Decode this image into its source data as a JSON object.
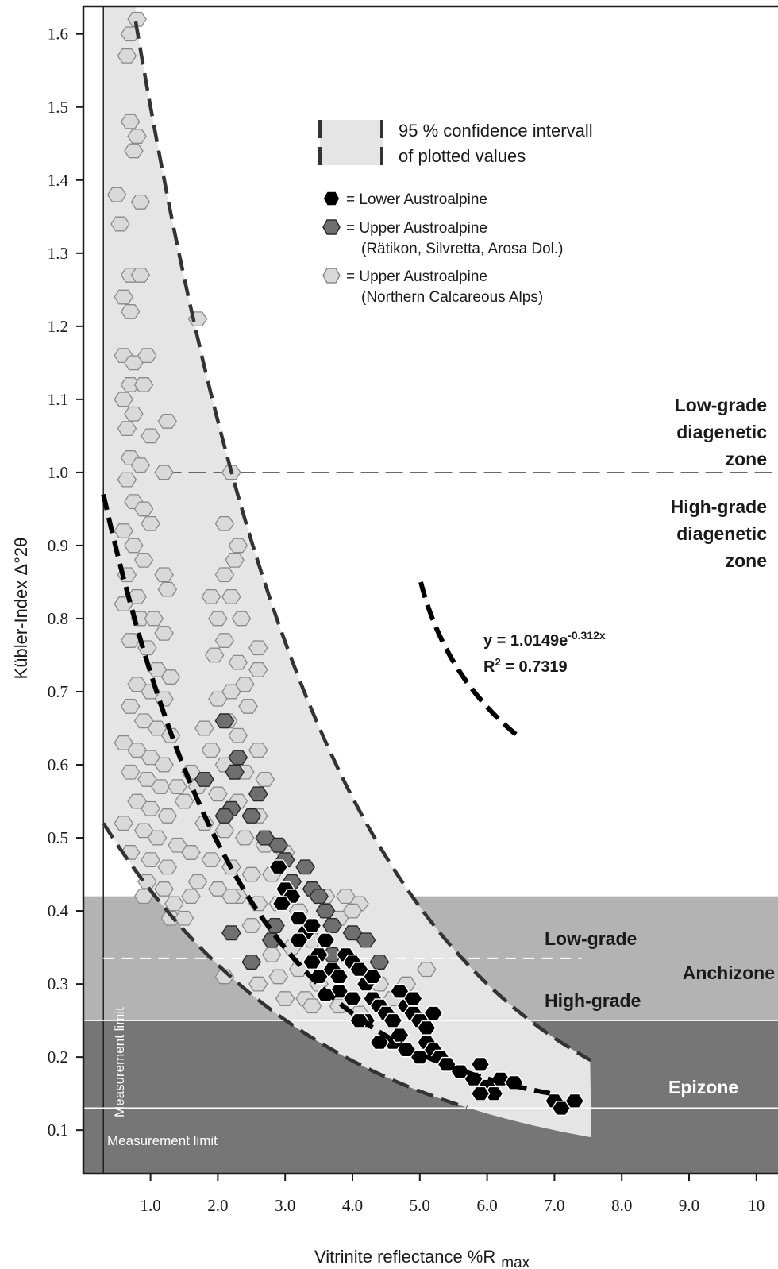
{
  "chart_data": {
    "type": "scatter",
    "xlabel": "Vitrinite reflectance %R",
    "xlabel_sub": "max",
    "ylabel": "Kübler-Index Δ°2θ",
    "xlim": [
      0,
      10.2
    ],
    "ylim": [
      0.02,
      1.64
    ],
    "x_ticks": [
      "1.0",
      "2.0",
      "3.0",
      "4.0",
      "5.0",
      "6.0",
      "7.0",
      "8.0",
      "9.0",
      "10"
    ],
    "y_ticks": [
      "0.1",
      "0.2",
      "0.3",
      "0.4",
      "0.5",
      "0.6",
      "0.7",
      "0.8",
      "0.9",
      "1.0",
      "1.1",
      "1.2",
      "1.3",
      "1.4",
      "1.5",
      "1.6"
    ],
    "legend": {
      "confidence_label_1": "95 % confidence intervall",
      "confidence_label_2": "of plotted values",
      "lower_label": "= Lower Austroalpine",
      "upper_label_1": "= Upper Austroalpine",
      "upper_label_2": "(Rätikon, Silvretta, Arosa Dol.)",
      "nca_label_1": "= Upper Austroalpine",
      "nca_label_2": "(Northern Calcareous Alps)"
    },
    "equation": {
      "line1_main": "y = 1.0149e",
      "line1_exp": "-0.312x",
      "line2_main": "R",
      "line2_sup": "2",
      "line2_rest": " = 0.7319"
    },
    "zones": {
      "lowgrade_diag_1": "Low-grade",
      "lowgrade_diag_2": "diagenetic",
      "lowgrade_diag_3": "zone",
      "highgrade_diag_1": "High-grade",
      "highgrade_diag_2": "diagenetic",
      "highgrade_diag_3": "zone",
      "anchi_low": "Low-grade",
      "anchi_high": "High-grade",
      "anchizone": "Anchizone",
      "epizone": "Epizone",
      "measurement_limit": "Measurement limit",
      "measurement_limit_vertical": "Measurement limit"
    },
    "boundaries": {
      "diag_split": 1.0,
      "anchi_top": 0.42,
      "anchi_split": 0.335,
      "epi_top": 0.25,
      "meas_y": 0.13,
      "meas_x": 0.3
    },
    "fit": {
      "a": 1.0149,
      "b": -0.312
    },
    "colors": {
      "confidence_fill": "#e5e5e5",
      "anchizone": "#b3b3b3",
      "epizone": "#767676",
      "lower": "#000000",
      "upper": "#6f6f6f",
      "nca": "#d9d9d9"
    },
    "series": [
      {
        "name": "Lower Austroalpine",
        "points": [
          [
            2.9,
            0.46
          ],
          [
            3.0,
            0.43
          ],
          [
            3.1,
            0.42
          ],
          [
            2.95,
            0.41
          ],
          [
            3.2,
            0.39
          ],
          [
            3.3,
            0.37
          ],
          [
            3.4,
            0.38
          ],
          [
            3.2,
            0.36
          ],
          [
            3.5,
            0.34
          ],
          [
            3.6,
            0.36
          ],
          [
            3.4,
            0.33
          ],
          [
            3.7,
            0.32
          ],
          [
            3.8,
            0.31
          ],
          [
            3.9,
            0.34
          ],
          [
            4.0,
            0.33
          ],
          [
            3.8,
            0.29
          ],
          [
            3.6,
            0.285
          ],
          [
            4.1,
            0.32
          ],
          [
            4.2,
            0.3
          ],
          [
            4.0,
            0.28
          ],
          [
            4.3,
            0.28
          ],
          [
            4.4,
            0.27
          ],
          [
            4.2,
            0.25
          ],
          [
            4.5,
            0.26
          ],
          [
            4.6,
            0.25
          ],
          [
            4.7,
            0.29
          ],
          [
            4.8,
            0.27
          ],
          [
            4.9,
            0.26
          ],
          [
            5.0,
            0.25
          ],
          [
            5.1,
            0.24
          ],
          [
            5.2,
            0.26
          ],
          [
            4.6,
            0.22
          ],
          [
            4.7,
            0.23
          ],
          [
            4.8,
            0.21
          ],
          [
            5.0,
            0.2
          ],
          [
            5.1,
            0.22
          ],
          [
            5.2,
            0.21
          ],
          [
            5.3,
            0.2
          ],
          [
            5.4,
            0.19
          ],
          [
            4.4,
            0.22
          ],
          [
            4.1,
            0.25
          ],
          [
            5.6,
            0.18
          ],
          [
            5.8,
            0.17
          ],
          [
            5.9,
            0.19
          ],
          [
            6.0,
            0.16
          ],
          [
            6.1,
            0.15
          ],
          [
            6.2,
            0.17
          ],
          [
            6.4,
            0.165
          ],
          [
            5.9,
            0.15
          ],
          [
            7.0,
            0.14
          ],
          [
            7.1,
            0.13
          ],
          [
            7.3,
            0.14
          ],
          [
            4.3,
            0.31
          ],
          [
            3.5,
            0.31
          ],
          [
            4.9,
            0.28
          ]
        ]
      },
      {
        "name": "Upper Austroalpine (Rätikon, Silvretta, Arosa Dol.)",
        "points": [
          [
            2.1,
            0.66
          ],
          [
            2.3,
            0.61
          ],
          [
            2.25,
            0.59
          ],
          [
            1.8,
            0.58
          ],
          [
            2.6,
            0.56
          ],
          [
            2.2,
            0.54
          ],
          [
            2.5,
            0.53
          ],
          [
            2.1,
            0.53
          ],
          [
            2.7,
            0.5
          ],
          [
            2.9,
            0.49
          ],
          [
            3.0,
            0.47
          ],
          [
            3.3,
            0.46
          ],
          [
            3.4,
            0.43
          ],
          [
            3.5,
            0.42
          ],
          [
            3.6,
            0.4
          ],
          [
            3.7,
            0.38
          ],
          [
            4.0,
            0.37
          ],
          [
            4.2,
            0.36
          ],
          [
            3.7,
            0.34
          ],
          [
            4.4,
            0.33
          ],
          [
            2.2,
            0.37
          ],
          [
            2.5,
            0.33
          ],
          [
            2.8,
            0.36
          ],
          [
            3.1,
            0.44
          ],
          [
            2.85,
            0.38
          ]
        ]
      },
      {
        "name": "Upper Austroalpine (Northern Calcareous Alps)",
        "points": [
          [
            0.8,
            1.62
          ],
          [
            0.7,
            1.6
          ],
          [
            0.65,
            1.57
          ],
          [
            0.7,
            1.48
          ],
          [
            0.8,
            1.46
          ],
          [
            0.75,
            1.44
          ],
          [
            0.85,
            1.37
          ],
          [
            0.5,
            1.38
          ],
          [
            0.55,
            1.34
          ],
          [
            0.7,
            1.27
          ],
          [
            0.85,
            1.27
          ],
          [
            0.6,
            1.24
          ],
          [
            0.7,
            1.22
          ],
          [
            0.6,
            1.16
          ],
          [
            0.75,
            1.15
          ],
          [
            0.95,
            1.16
          ],
          [
            0.7,
            1.12
          ],
          [
            0.9,
            1.12
          ],
          [
            0.6,
            1.1
          ],
          [
            0.75,
            1.08
          ],
          [
            0.65,
            1.06
          ],
          [
            1.0,
            1.05
          ],
          [
            1.25,
            1.07
          ],
          [
            0.7,
            1.02
          ],
          [
            0.85,
            1.01
          ],
          [
            0.65,
            0.99
          ],
          [
            1.2,
            1.0
          ],
          [
            2.2,
            1.0
          ],
          [
            1.7,
            1.21
          ],
          [
            0.75,
            0.96
          ],
          [
            0.9,
            0.95
          ],
          [
            1.0,
            0.93
          ],
          [
            0.6,
            0.92
          ],
          [
            0.75,
            0.9
          ],
          [
            0.9,
            0.88
          ],
          [
            0.65,
            0.86
          ],
          [
            0.8,
            0.83
          ],
          [
            1.2,
            0.86
          ],
          [
            1.25,
            0.84
          ],
          [
            0.6,
            0.82
          ],
          [
            0.85,
            0.8
          ],
          [
            1.05,
            0.8
          ],
          [
            1.2,
            0.78
          ],
          [
            0.7,
            0.77
          ],
          [
            0.95,
            0.76
          ],
          [
            1.1,
            0.73
          ],
          [
            1.3,
            0.72
          ],
          [
            0.8,
            0.71
          ],
          [
            1.0,
            0.7
          ],
          [
            1.2,
            0.69
          ],
          [
            0.7,
            0.68
          ],
          [
            0.9,
            0.66
          ],
          [
            1.1,
            0.65
          ],
          [
            1.3,
            0.64
          ],
          [
            0.6,
            0.63
          ],
          [
            0.8,
            0.62
          ],
          [
            1.0,
            0.61
          ],
          [
            1.2,
            0.6
          ],
          [
            0.7,
            0.59
          ],
          [
            0.95,
            0.58
          ],
          [
            1.15,
            0.57
          ],
          [
            1.4,
            0.57
          ],
          [
            0.8,
            0.55
          ],
          [
            1.0,
            0.54
          ],
          [
            1.25,
            0.53
          ],
          [
            0.6,
            0.52
          ],
          [
            0.9,
            0.51
          ],
          [
            1.1,
            0.5
          ],
          [
            1.4,
            0.49
          ],
          [
            0.7,
            0.48
          ],
          [
            1.0,
            0.47
          ],
          [
            1.25,
            0.46
          ],
          [
            0.95,
            0.44
          ],
          [
            1.2,
            0.43
          ],
          [
            1.35,
            0.41
          ],
          [
            0.9,
            0.42
          ],
          [
            1.3,
            0.39
          ],
          [
            1.5,
            0.39
          ],
          [
            1.6,
            0.42
          ],
          [
            2.1,
            0.93
          ],
          [
            2.3,
            0.9
          ],
          [
            2.25,
            0.88
          ],
          [
            2.1,
            0.86
          ],
          [
            2.2,
            0.83
          ],
          [
            1.9,
            0.83
          ],
          [
            2.0,
            0.8
          ],
          [
            2.35,
            0.8
          ],
          [
            2.1,
            0.77
          ],
          [
            1.95,
            0.75
          ],
          [
            2.3,
            0.74
          ],
          [
            2.6,
            0.76
          ],
          [
            2.6,
            0.73
          ],
          [
            2.4,
            0.71
          ],
          [
            2.2,
            0.7
          ],
          [
            2.0,
            0.69
          ],
          [
            2.45,
            0.68
          ],
          [
            2.15,
            0.66
          ],
          [
            1.8,
            0.65
          ],
          [
            2.3,
            0.64
          ],
          [
            2.6,
            0.62
          ],
          [
            1.9,
            0.62
          ],
          [
            2.1,
            0.6
          ],
          [
            2.4,
            0.59
          ],
          [
            2.7,
            0.58
          ],
          [
            1.6,
            0.59
          ],
          [
            1.7,
            0.57
          ],
          [
            2.0,
            0.56
          ],
          [
            2.3,
            0.55
          ],
          [
            2.6,
            0.53
          ],
          [
            1.5,
            0.55
          ],
          [
            1.8,
            0.52
          ],
          [
            2.1,
            0.51
          ],
          [
            2.4,
            0.5
          ],
          [
            2.7,
            0.49
          ],
          [
            3.0,
            0.48
          ],
          [
            1.6,
            0.48
          ],
          [
            1.9,
            0.47
          ],
          [
            2.2,
            0.46
          ],
          [
            2.5,
            0.45
          ],
          [
            2.8,
            0.45
          ],
          [
            3.1,
            0.44
          ],
          [
            1.7,
            0.44
          ],
          [
            2.0,
            0.43
          ],
          [
            2.3,
            0.42
          ],
          [
            2.6,
            0.41
          ],
          [
            2.9,
            0.41
          ],
          [
            3.2,
            0.4
          ],
          [
            3.6,
            0.42
          ],
          [
            3.9,
            0.42
          ],
          [
            4.1,
            0.41
          ],
          [
            4.0,
            0.4
          ],
          [
            3.8,
            0.39
          ],
          [
            3.4,
            0.36
          ],
          [
            3.1,
            0.35
          ],
          [
            2.8,
            0.34
          ],
          [
            3.2,
            0.32
          ],
          [
            3.5,
            0.3
          ],
          [
            2.9,
            0.31
          ],
          [
            3.3,
            0.28
          ],
          [
            3.0,
            0.28
          ],
          [
            2.6,
            0.3
          ],
          [
            2.1,
            0.31
          ],
          [
            4.4,
            0.3
          ],
          [
            4.8,
            0.3
          ],
          [
            5.1,
            0.32
          ],
          [
            4.6,
            0.28
          ],
          [
            3.8,
            0.27
          ],
          [
            3.4,
            0.27
          ],
          [
            4.1,
            0.26
          ],
          [
            2.5,
            0.38
          ],
          [
            2.2,
            0.42
          ]
        ]
      }
    ]
  }
}
